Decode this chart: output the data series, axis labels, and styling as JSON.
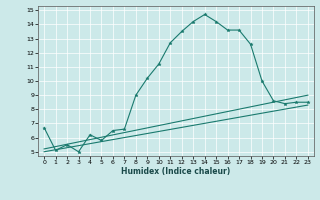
{
  "title": "",
  "xlabel": "Humidex (Indice chaleur)",
  "bg_color": "#cce9e9",
  "line_color": "#1a7a6e",
  "grid_color": "#ffffff",
  "xlim": [
    -0.5,
    23.5
  ],
  "ylim": [
    4.7,
    15.3
  ],
  "xticks": [
    0,
    1,
    2,
    3,
    4,
    5,
    6,
    7,
    8,
    9,
    10,
    11,
    12,
    13,
    14,
    15,
    16,
    17,
    18,
    19,
    20,
    21,
    22,
    23
  ],
  "yticks": [
    5,
    6,
    7,
    8,
    9,
    10,
    11,
    12,
    13,
    14,
    15
  ],
  "line1_x": [
    0,
    1,
    2,
    3,
    4,
    5,
    6,
    7,
    8,
    9,
    10,
    11,
    12,
    13,
    14,
    15,
    16,
    17,
    18,
    19,
    20,
    21,
    22,
    23
  ],
  "line1_y": [
    6.7,
    5.1,
    5.5,
    5.0,
    6.2,
    5.8,
    6.5,
    6.6,
    9.0,
    10.2,
    11.2,
    12.7,
    13.5,
    14.2,
    14.7,
    14.2,
    13.6,
    13.6,
    12.6,
    10.0,
    8.6,
    8.4,
    8.5,
    8.5
  ],
  "line2_x": [
    0,
    23
  ],
  "line2_y": [
    5.2,
    9.0
  ],
  "line3_x": [
    0,
    23
  ],
  "line3_y": [
    5.0,
    8.3
  ]
}
